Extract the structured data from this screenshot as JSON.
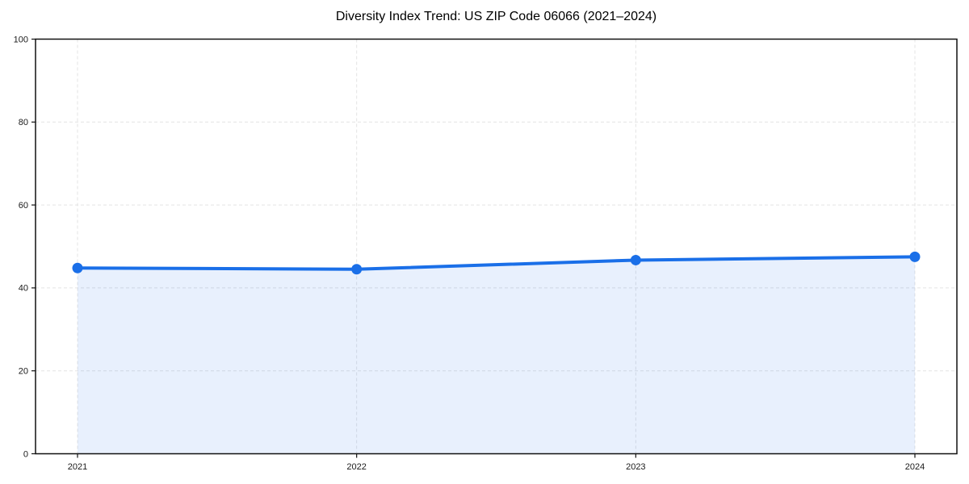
{
  "page": {
    "background": "#ffffff"
  },
  "chart_data": {
    "type": "area",
    "title": "Diversity Index Trend: US ZIP Code 06066 (2021–2024)",
    "categories": [
      "2021",
      "2022",
      "2023",
      "2024"
    ],
    "series": [
      {
        "name": "Diversity Index",
        "values": [
          44.8,
          44.5,
          46.7,
          47.5
        ]
      }
    ],
    "xlabel": "",
    "ylabel": "",
    "ylim": [
      0,
      100
    ],
    "yticks": [
      0,
      20,
      40,
      60,
      80,
      100
    ],
    "grid": true,
    "grid_style": "dashed",
    "legend_position": "none",
    "marker": "circle",
    "colors": {
      "line": "#1a6fe8",
      "marker": "#1a6fe8",
      "area_opacity": 0.1,
      "grid": "#e3e3e3",
      "spine": "#111111",
      "tick_label": "#1a1a1a",
      "title": "#000000",
      "background": "#ffffff"
    }
  }
}
